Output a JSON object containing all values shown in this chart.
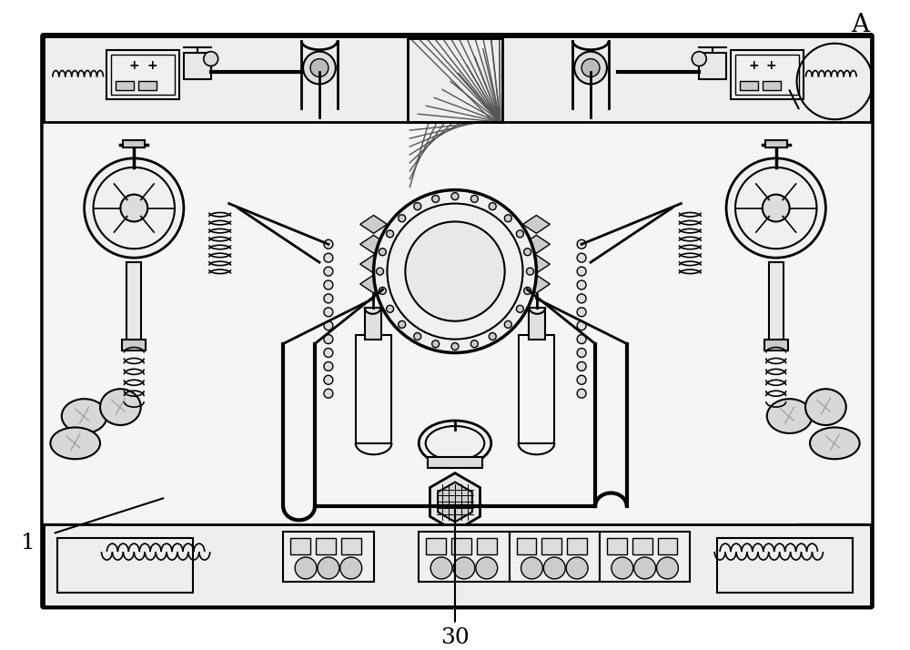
{
  "bg_color": "#ffffff",
  "line_color": "#000000",
  "light_gray": "#cccccc",
  "mid_gray": "#888888",
  "dark_gray": "#444444",
  "fill_light": "#f0f0f0",
  "fill_mid": "#d8d8d8",
  "title": "",
  "label_1": "1",
  "label_30": "30",
  "label_A": "A",
  "fig_width": 10.0,
  "fig_height": 7.14,
  "dpi": 100
}
